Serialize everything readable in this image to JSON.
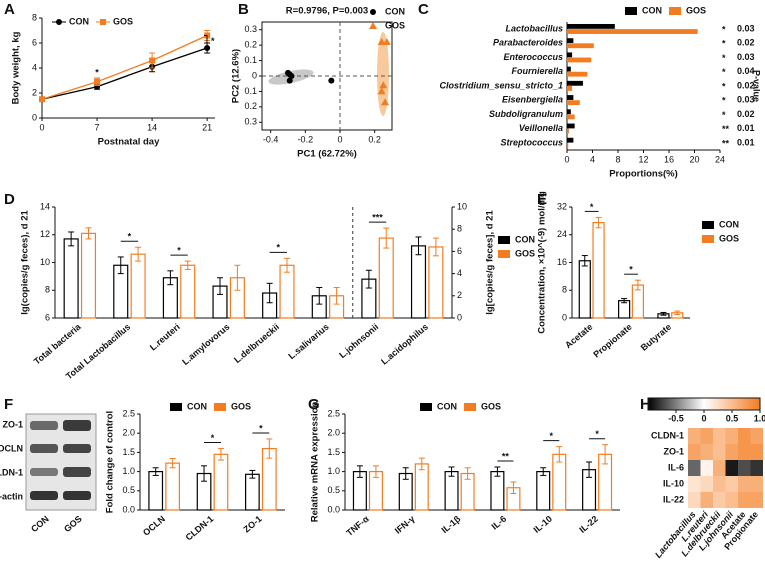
{
  "chart_data": [
    {
      "type": "line",
      "panel_label": "A",
      "xlabel": "Postnatal day",
      "ylabel": "Body weight, kg",
      "x": [
        0,
        7,
        14,
        21
      ],
      "xlim": [
        0,
        22
      ],
      "xticks": [
        0,
        7,
        14,
        21
      ],
      "ylim": [
        0,
        8
      ],
      "yticks": [
        0,
        2,
        4,
        6,
        8
      ],
      "series": [
        {
          "name": "CON",
          "color": "#000000",
          "marker": "circle",
          "values": [
            1.5,
            2.5,
            4.1,
            5.6
          ],
          "errors": [
            0.1,
            0.2,
            0.4,
            0.4
          ]
        },
        {
          "name": "GOS",
          "color": "#f47c20",
          "marker": "square",
          "values": [
            1.5,
            2.9,
            4.6,
            6.6
          ],
          "errors": [
            0.1,
            0.3,
            0.6,
            0.4
          ]
        }
      ],
      "significance": [
        null,
        "*",
        null,
        null
      ],
      "end_significance": "*"
    },
    {
      "type": "scatter",
      "panel_label": "B",
      "title": "R=0.9796, P=0.003",
      "xlabel": "PC1 (62.72%)",
      "ylabel": "PC2 (12.6%)",
      "xlim": [
        -0.45,
        0.3
      ],
      "xticks": [
        -0.4,
        -0.2,
        0,
        0.2
      ],
      "ylim": [
        -0.35,
        0.35
      ],
      "yticks": [
        0.3,
        0.2,
        0.1,
        0,
        {
          "value": -0.1,
          "label": "0.1"
        },
        {
          "value": -0.2,
          "label": "0.2"
        },
        {
          "value": -0.3,
          "label": "0.3"
        }
      ],
      "series": [
        {
          "name": "CON",
          "color": "#000000",
          "marker": "circle",
          "x": [
            -0.3,
            -0.29,
            -0.28,
            -0.29,
            -0.05
          ],
          "y": [
            0.02,
            0.01,
            0.0,
            -0.03,
            -0.03
          ]
        },
        {
          "name": "GOS",
          "color": "#f47c20",
          "marker": "triangle",
          "x": [
            0.24,
            0.27,
            0.25,
            0.24,
            0.26
          ],
          "y": [
            0.22,
            0.22,
            -0.06,
            -0.1,
            -0.17
          ]
        }
      ]
    },
    {
      "type": "hbar",
      "panel_label": "C",
      "xlabel": "Proportions(%)",
      "p_label": "P-value",
      "categories": [
        "Lactobacillus",
        "Parabacteroides",
        "Enterococcus",
        "Fournierella",
        "Clostridium_sensu_stricto_1",
        "Eisenbergiella",
        "Subdoligranulum",
        "Veillonella",
        "Streptococcus"
      ],
      "xlim": [
        0,
        24
      ],
      "xticks": [
        0,
        4,
        8,
        12,
        16,
        20,
        24
      ],
      "series": [
        {
          "name": "CON",
          "color": "#000000",
          "values": [
            7.5,
            1.0,
            0.8,
            0.6,
            2.5,
            1.0,
            0.6,
            1.2,
            1.0
          ]
        },
        {
          "name": "GOS",
          "color": "#f47c20",
          "values": [
            20.5,
            4.2,
            3.8,
            3.2,
            0.8,
            2.0,
            1.2,
            0.3,
            0.2
          ]
        }
      ],
      "significance": [
        "*",
        "*",
        "*",
        "*",
        "*",
        "*",
        "*",
        "**",
        "**"
      ],
      "p_values": [
        0.03,
        0.02,
        0.03,
        0.04,
        0.02,
        0.03,
        0.02,
        0.01,
        0.01
      ]
    },
    {
      "type": "bar",
      "panel_label": "D",
      "ylabel": "lg(copies/g feces), d 21",
      "y2label": "lg[copies/g feces], d 21",
      "ylim": [
        6,
        14
      ],
      "yticks": [
        6,
        8,
        10,
        12,
        14
      ],
      "y2lim": [
        0,
        10
      ],
      "y2ticks": [
        0,
        2,
        4,
        6,
        8,
        10
      ],
      "categories": [
        "Total bacteria",
        "Total Lactobacillus",
        "L.reuteri",
        "L.amylovorus",
        "L.delbrueckii",
        "L.salivarius",
        "L.johnsonii",
        "L.acidophilus"
      ],
      "category_axis": [
        "y",
        "y",
        "y",
        "y",
        "y",
        "y",
        "y2",
        "y2"
      ],
      "series": [
        {
          "name": "CON",
          "color": "#000000",
          "values": [
            11.7,
            9.8,
            8.9,
            8.3,
            7.8,
            7.6,
            3.5,
            6.5
          ],
          "errors": [
            0.5,
            0.6,
            0.5,
            0.6,
            0.7,
            0.6,
            0.8,
            0.8
          ]
        },
        {
          "name": "GOS",
          "color": "#f47c20",
          "values": [
            12.1,
            10.6,
            9.8,
            8.9,
            9.8,
            7.6,
            7.2,
            6.4
          ],
          "errors": [
            0.4,
            0.5,
            0.3,
            0.9,
            0.5,
            0.6,
            0.9,
            0.8
          ]
        }
      ],
      "significance": [
        null,
        "*",
        "*",
        null,
        "*",
        null,
        "***",
        null
      ]
    },
    {
      "type": "bar",
      "panel_label": "E",
      "ylabel": "Concentration, ×10^(-9) mol/mg",
      "ylim": [
        0,
        32
      ],
      "yticks": [
        0,
        8,
        16,
        24,
        32
      ],
      "categories": [
        "Acetate",
        "Propionate",
        "Butyrate"
      ],
      "series": [
        {
          "name": "CON",
          "color": "#000000",
          "values": [
            16.5,
            5.0,
            1.2
          ],
          "errors": [
            1.5,
            0.6,
            0.4
          ]
        },
        {
          "name": "GOS",
          "color": "#f47c20",
          "values": [
            27.5,
            9.5,
            1.5
          ],
          "errors": [
            1.5,
            1.4,
            0.5
          ]
        }
      ],
      "significance": [
        "*",
        "*",
        null
      ]
    },
    {
      "type": "bar",
      "panel_label": "F",
      "ylabel": "Fold change of control",
      "blot_rows": [
        "ZO-1",
        "OCLN",
        "CLDN-1",
        "β-actin"
      ],
      "blot_lanes": [
        "CON",
        "GOS"
      ],
      "ylim": [
        0,
        2.5
      ],
      "yticks": [
        {
          "value": 0,
          "label": "0.0"
        },
        0.5,
        {
          "value": 1,
          "label": "1.0"
        },
        1.5,
        {
          "value": 2,
          "label": "2.0"
        },
        2.5
      ],
      "categories": [
        "OCLN",
        "CLDN-1",
        "ZO-1"
      ],
      "series": [
        {
          "name": "CON",
          "color": "#000000",
          "values": [
            1.0,
            0.95,
            0.93
          ],
          "errors": [
            0.1,
            0.2,
            0.1
          ]
        },
        {
          "name": "GOS",
          "color": "#f47c20",
          "values": [
            1.22,
            1.45,
            1.6
          ],
          "errors": [
            0.12,
            0.15,
            0.25
          ]
        }
      ],
      "significance": [
        null,
        "*",
        "*"
      ]
    },
    {
      "type": "bar",
      "panel_label": "G",
      "ylabel": "Relative mRNA expression",
      "ylim": [
        0,
        2.5
      ],
      "yticks": [
        {
          "value": 0,
          "label": "0.0"
        },
        0.5,
        {
          "value": 1,
          "label": "1.0"
        },
        1.5,
        {
          "value": 2,
          "label": "2.0"
        },
        2.5
      ],
      "categories": [
        "TNF-α",
        "IFN-γ",
        "IL-1β",
        "IL-6",
        "IL-10",
        "IL-22"
      ],
      "series": [
        {
          "name": "CON",
          "color": "#000000",
          "values": [
            1.0,
            0.95,
            1.0,
            1.0,
            1.0,
            1.05
          ],
          "errors": [
            0.15,
            0.15,
            0.12,
            0.12,
            0.1,
            0.2
          ]
        },
        {
          "name": "GOS",
          "color": "#f47c20",
          "values": [
            1.0,
            1.2,
            0.95,
            0.58,
            1.45,
            1.45
          ],
          "errors": [
            0.15,
            0.15,
            0.15,
            0.15,
            0.2,
            0.25
          ]
        }
      ],
      "significance": [
        null,
        null,
        null,
        "**",
        "*",
        "*"
      ]
    },
    {
      "type": "heatmap",
      "panel_label": "H",
      "rows": [
        "CLDN-1",
        "ZO-1",
        "IL-6",
        "IL-10",
        "IL-22"
      ],
      "columns": [
        "Lactobacillus",
        "L.reuteri",
        "L.delbrueckii",
        "L.johnsonii",
        "Acetate",
        "Propionate"
      ],
      "values": [
        [
          0.6,
          0.7,
          0.5,
          0.6,
          0.8,
          0.7
        ],
        [
          0.7,
          0.6,
          0.5,
          0.7,
          0.8,
          0.8
        ],
        [
          -0.6,
          0.1,
          0.6,
          -0.9,
          -0.7,
          -0.8
        ],
        [
          0.2,
          0.3,
          0.5,
          0.4,
          0.6,
          0.6
        ],
        [
          0.3,
          0.6,
          0.4,
          0.5,
          0.7,
          0.7
        ]
      ],
      "zlim": [
        -1,
        1
      ],
      "colormap": [
        "#000000",
        "#ffffff",
        "#f47c20"
      ],
      "colorbar_ticks": [
        -0.5,
        0,
        0.5,
        {
          "value": 1,
          "label": "1.0"
        }
      ]
    }
  ]
}
